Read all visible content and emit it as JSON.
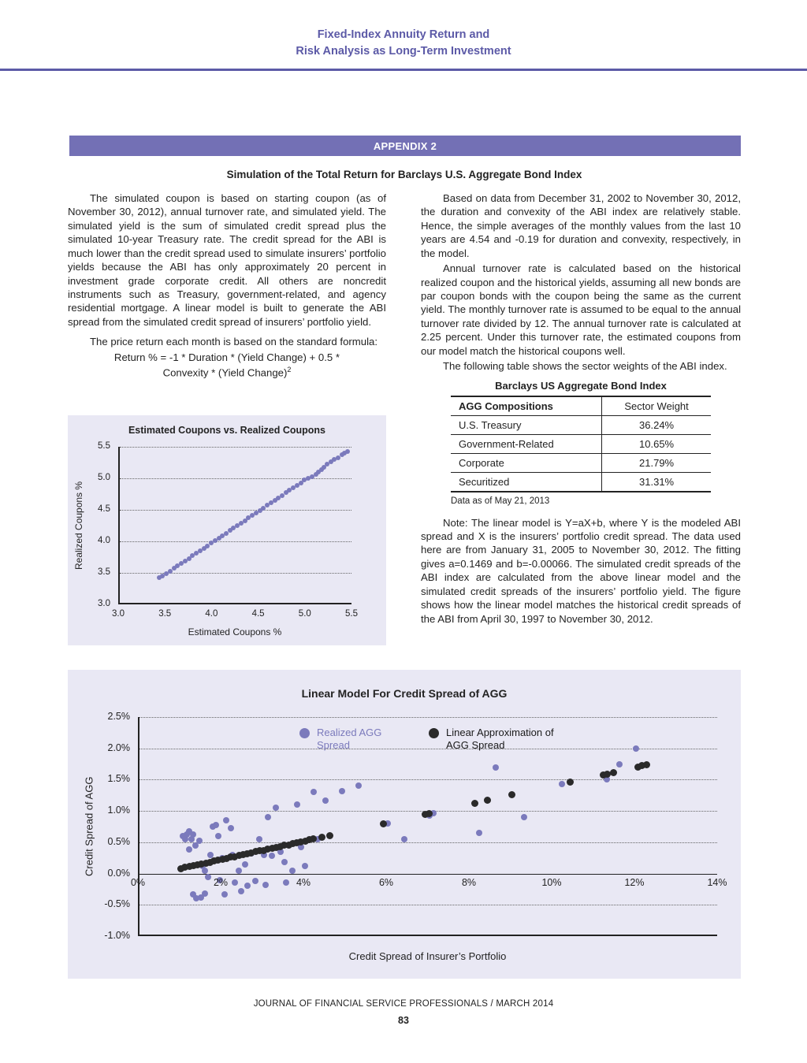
{
  "header": {
    "line1": "Fixed-Index Annuity Return and",
    "line2": "Risk Analysis as Long-Term Investment"
  },
  "appendix_banner": "APPENDIX 2",
  "section_title": "Simulation of the Total Return for Barclays U.S. Aggregate Bond Index",
  "left_column": {
    "para1": "The simulated coupon is based on starting coupon (as of November 30, 2012), annual turnover rate, and simulated yield. The simulated yield is the sum of simulated credit spread plus the simulated 10-year Treasury rate. The credit spread for the ABI is much lower than the credit spread used to simulate insurers’ portfolio yields because the ABI has only approximately 20 percent in investment grade corporate credit. All others are noncredit instruments such as Treasury, government-related, and agency residential mortgage. A linear model is built to generate the ABI spread from the simulated credit spread of insurers’ portfolio yield.",
    "formula_intro": "The price return each month is based on the standard formula:",
    "formula_line1": "Return % = -1 * Duration * (Yield Change) + 0.5 *",
    "formula_line2": "Convexity * (Yield Change)",
    "formula_superscript": "2"
  },
  "right_column": {
    "para1": "Based on data from December 31, 2002 to November 30, 2012, the duration and convexity of the ABI index are relatively stable. Hence, the simple averages of the monthly values from the last 10 years are 4.54 and -0.19 for duration and convexity, respectively, in the model.",
    "para2": "Annual turnover rate is calculated based on the historical realized coupon and the historical yields, assuming all new bonds are par coupon bonds with the coupon being the same as the current yield. The monthly turnover rate is assumed to be equal to the annual turnover rate divided by 12. The annual turnover rate is calculated at 2.25 percent. Under this turnover rate, the estimated coupons from our model match the historical coupons well.",
    "para3": "The following table shows the sector weights of the ABI index."
  },
  "table": {
    "title": "Barclays US Aggregate Bond Index",
    "col1_header": "AGG Compositions",
    "col2_header": "Sector Weight",
    "rows": [
      {
        "label": "U.S. Treasury",
        "weight": "36.24%"
      },
      {
        "label": "Government-Related",
        "weight": "10.65%"
      },
      {
        "label": "Corporate",
        "weight": "21.79%"
      },
      {
        "label": "Securitized",
        "weight": "31.31%"
      }
    ],
    "caption": "Data as of May 21, 2013"
  },
  "note": "Note: The linear model is Y=aX+b, where Y is the modeled ABI spread and X is the insurers’ portfolio credit spread. The data used here are from January 31, 2005 to November 30, 2012. The fitting gives a=0.1469 and b=-0.00066. The simulated credit spreads of the ABI index are calculated from the above linear model and the simulated credit spreads of the insurers’ portfolio yield. The figure shows how the linear model matches the historical credit spreads of the ABI from April 30, 1997 to November 30, 2012.",
  "footer": {
    "journal": "JOURNAL OF FINANCIAL SERVICE PROFESSIONALS / MARCH 2014",
    "page_number": "83"
  },
  "colors": {
    "accent_purple": "#5c5aa7",
    "banner_purple": "#7370b5",
    "panel_lavender": "#e9e8f4",
    "dot_purple": "#7b7abc",
    "dot_black": "#2a2a2a"
  },
  "chart_data": [
    {
      "type": "scatter",
      "title": "Estimated Coupons vs. Realized Coupons",
      "xlabel": "Estimated Coupons %",
      "ylabel": "Realized Coupons %",
      "xlim": [
        3.0,
        5.5
      ],
      "ylim": [
        3.0,
        5.5
      ],
      "grid": "horizontal-dotted",
      "legend_position": "none",
      "yticks": [
        {
          "value": 5.5,
          "label": "5.5"
        },
        {
          "value": 5.0,
          "label": "5.0"
        },
        {
          "value": 4.5,
          "label": "4.5"
        },
        {
          "value": 4.0,
          "label": "4.0"
        },
        {
          "value": 3.5,
          "label": "3.5"
        },
        {
          "value": 3.0,
          "label": "3.0"
        }
      ],
      "xticks": [
        {
          "value": 3.0,
          "label": "3.0"
        },
        {
          "value": 3.5,
          "label": "3.5"
        },
        {
          "value": 4.0,
          "label": "4.0"
        },
        {
          "value": 4.5,
          "label": "4.5"
        },
        {
          "value": 5.0,
          "label": "5.0"
        },
        {
          "value": 5.5,
          "label": "5.5"
        }
      ],
      "series": [
        {
          "name": "Estimated vs Realized Coupons",
          "color": "#7b7abc",
          "points": [
            [
              3.42,
              3.42
            ],
            [
              3.46,
              3.45
            ],
            [
              3.5,
              3.49
            ],
            [
              3.54,
              3.53
            ],
            [
              3.58,
              3.57
            ],
            [
              3.62,
              3.61
            ],
            [
              3.66,
              3.65
            ],
            [
              3.7,
              3.69
            ],
            [
              3.74,
              3.73
            ],
            [
              3.78,
              3.77
            ],
            [
              3.82,
              3.81
            ],
            [
              3.86,
              3.85
            ],
            [
              3.9,
              3.89
            ],
            [
              3.94,
              3.93
            ],
            [
              3.98,
              3.97
            ],
            [
              4.02,
              4.01
            ],
            [
              4.06,
              4.05
            ],
            [
              4.1,
              4.09
            ],
            [
              4.14,
              4.13
            ],
            [
              4.18,
              4.17
            ],
            [
              4.22,
              4.21
            ],
            [
              4.26,
              4.25
            ],
            [
              4.3,
              4.29
            ],
            [
              4.34,
              4.33
            ],
            [
              4.38,
              4.37
            ],
            [
              4.42,
              4.41
            ],
            [
              4.46,
              4.45
            ],
            [
              4.5,
              4.49
            ],
            [
              4.54,
              4.53
            ],
            [
              4.58,
              4.57
            ],
            [
              4.62,
              4.61
            ],
            [
              4.66,
              4.65
            ],
            [
              4.7,
              4.69
            ],
            [
              4.74,
              4.73
            ],
            [
              4.78,
              4.77
            ],
            [
              4.82,
              4.81
            ],
            [
              4.86,
              4.85
            ],
            [
              4.9,
              4.89
            ],
            [
              4.94,
              4.93
            ],
            [
              4.98,
              4.97
            ],
            [
              5.02,
              5.0
            ],
            [
              5.06,
              5.03
            ],
            [
              5.1,
              5.06
            ],
            [
              5.13,
              5.1
            ],
            [
              5.16,
              5.14
            ],
            [
              5.19,
              5.18
            ],
            [
              5.22,
              5.22
            ],
            [
              5.26,
              5.26
            ],
            [
              5.3,
              5.3
            ],
            [
              5.34,
              5.33
            ],
            [
              5.38,
              5.37
            ],
            [
              5.41,
              5.4
            ],
            [
              5.44,
              5.43
            ]
          ]
        }
      ]
    },
    {
      "type": "scatter",
      "title": "Linear Model For Credit Spread of AGG",
      "xlabel": "Credit Spread of Insurer’s Portfolio",
      "ylabel": "Credit Spread of AGG",
      "xlim": [
        0,
        14
      ],
      "ylim": [
        -1.0,
        2.5
      ],
      "axis_y": 0.0,
      "grid": "horizontal-dotted",
      "legend_position": "top-inside",
      "legend": [
        {
          "label": "Realized AGG Spread",
          "color": "#7b7abc"
        },
        {
          "label": "Linear Approximation of AGG Spread",
          "color": "#2a2a2a"
        }
      ],
      "yticks": [
        {
          "value": 2.5,
          "label": "2.5%"
        },
        {
          "value": 2.0,
          "label": "2.0%"
        },
        {
          "value": 1.5,
          "label": "1.5%"
        },
        {
          "value": 1.0,
          "label": "1.0%"
        },
        {
          "value": 0.5,
          "label": "0.5%"
        },
        {
          "value": 0.0,
          "label": "0.0%"
        },
        {
          "value": -0.5,
          "label": "-0.5%"
        },
        {
          "value": -1.0,
          "label": "-1.0%"
        }
      ],
      "xticks": [
        {
          "value": 0,
          "label": "0%"
        },
        {
          "value": 2,
          "label": "2%"
        },
        {
          "value": 4,
          "label": "4%"
        },
        {
          "value": 6,
          "label": "6%"
        },
        {
          "value": 8,
          "label": "8%"
        },
        {
          "value": 10,
          "label": "10%"
        },
        {
          "value": 12,
          "label": "12%"
        },
        {
          "value": 14,
          "label": "14%"
        }
      ],
      "series": [
        {
          "name": "Realized AGG Spread",
          "color": "#7b7abc",
          "points": [
            [
              1.05,
              0.6
            ],
            [
              1.1,
              0.55
            ],
            [
              1.15,
              0.63
            ],
            [
              1.2,
              0.68
            ],
            [
              1.25,
              0.55
            ],
            [
              1.3,
              0.62
            ],
            [
              1.35,
              0.45
            ],
            [
              1.2,
              0.38
            ],
            [
              1.45,
              0.52
            ],
            [
              1.3,
              -0.33
            ],
            [
              1.38,
              -0.4
            ],
            [
              1.48,
              -0.38
            ],
            [
              1.58,
              -0.32
            ],
            [
              1.52,
              0.12
            ],
            [
              1.58,
              0.05
            ],
            [
              1.65,
              -0.05
            ],
            [
              1.72,
              0.3
            ],
            [
              1.78,
              0.75
            ],
            [
              1.85,
              0.78
            ],
            [
              1.9,
              0.6
            ],
            [
              1.95,
              -0.1
            ],
            [
              2.0,
              0.25
            ],
            [
              2.05,
              -0.33
            ],
            [
              2.1,
              0.85
            ],
            [
              2.2,
              0.72
            ],
            [
              2.25,
              0.3
            ],
            [
              2.3,
              -0.15
            ],
            [
              2.4,
              0.05
            ],
            [
              2.45,
              -0.28
            ],
            [
              2.55,
              0.15
            ],
            [
              2.6,
              -0.2
            ],
            [
              2.7,
              0.32
            ],
            [
              2.8,
              -0.12
            ],
            [
              2.9,
              0.55
            ],
            [
              3.0,
              0.3
            ],
            [
              3.05,
              -0.18
            ],
            [
              3.1,
              0.9
            ],
            [
              3.2,
              0.28
            ],
            [
              3.3,
              1.05
            ],
            [
              3.4,
              0.35
            ],
            [
              3.5,
              0.18
            ],
            [
              3.55,
              -0.15
            ],
            [
              3.7,
              0.05
            ],
            [
              3.8,
              1.1
            ],
            [
              3.9,
              0.42
            ],
            [
              4.0,
              0.12
            ],
            [
              4.2,
              1.3
            ],
            [
              4.3,
              0.55
            ],
            [
              4.5,
              1.17
            ],
            [
              4.9,
              1.32
            ],
            [
              5.3,
              1.4
            ],
            [
              6.0,
              0.8
            ],
            [
              6.4,
              0.55
            ],
            [
              7.0,
              0.93
            ],
            [
              7.1,
              0.97
            ],
            [
              8.2,
              0.65
            ],
            [
              8.6,
              1.7
            ],
            [
              9.3,
              0.9
            ],
            [
              10.2,
              1.43
            ],
            [
              11.3,
              1.5
            ],
            [
              11.6,
              1.75
            ],
            [
              12.0,
              2.0
            ]
          ]
        },
        {
          "name": "Linear Approximation of AGG Spread",
          "color": "#2a2a2a",
          "points": [
            [
              1.0,
              0.08
            ],
            [
              1.1,
              0.1
            ],
            [
              1.2,
              0.11
            ],
            [
              1.3,
              0.13
            ],
            [
              1.4,
              0.14
            ],
            [
              1.5,
              0.15
            ],
            [
              1.6,
              0.17
            ],
            [
              1.7,
              0.18
            ],
            [
              1.8,
              0.2
            ],
            [
              1.9,
              0.21
            ],
            [
              2.0,
              0.23
            ],
            [
              2.1,
              0.24
            ],
            [
              2.2,
              0.26
            ],
            [
              2.3,
              0.27
            ],
            [
              2.4,
              0.29
            ],
            [
              2.5,
              0.3
            ],
            [
              2.6,
              0.32
            ],
            [
              2.7,
              0.33
            ],
            [
              2.8,
              0.35
            ],
            [
              2.9,
              0.36
            ],
            [
              3.0,
              0.37
            ],
            [
              3.1,
              0.39
            ],
            [
              3.2,
              0.4
            ],
            [
              3.3,
              0.42
            ],
            [
              3.4,
              0.43
            ],
            [
              3.5,
              0.45
            ],
            [
              3.6,
              0.46
            ],
            [
              3.7,
              0.48
            ],
            [
              3.8,
              0.49
            ],
            [
              3.9,
              0.51
            ],
            [
              4.0,
              0.52
            ],
            [
              4.1,
              0.54
            ],
            [
              4.2,
              0.55
            ],
            [
              4.4,
              0.58
            ],
            [
              4.6,
              0.61
            ],
            [
              5.9,
              0.8
            ],
            [
              6.9,
              0.95
            ],
            [
              7.0,
              0.96
            ],
            [
              8.1,
              1.12
            ],
            [
              8.4,
              1.17
            ],
            [
              9.0,
              1.26
            ],
            [
              10.4,
              1.46
            ],
            [
              11.2,
              1.58
            ],
            [
              11.3,
              1.59
            ],
            [
              11.45,
              1.61
            ],
            [
              12.05,
              1.7
            ],
            [
              12.15,
              1.72
            ],
            [
              12.25,
              1.74
            ]
          ]
        }
      ]
    }
  ]
}
